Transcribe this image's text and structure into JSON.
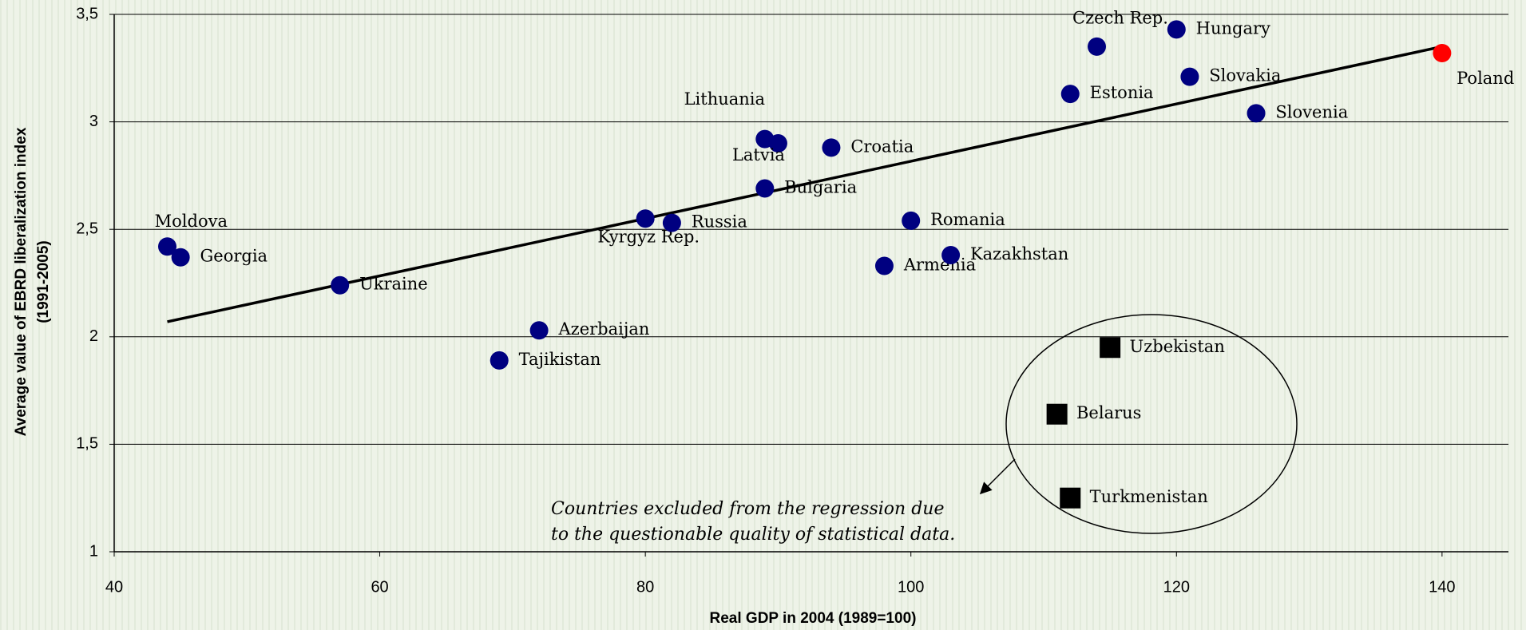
{
  "chart_data": {
    "type": "scatter",
    "x_label": "Real GDP in 2004 (1989=100)",
    "y_label": [
      "Average value of EBRD liberalization index",
      "(1991-2005)"
    ],
    "xlim": [
      40,
      145
    ],
    "ylim": [
      1,
      3.5
    ],
    "xticks": [
      40,
      60,
      80,
      100,
      120,
      140
    ],
    "yticks": [
      1,
      {
        "value": 1.5,
        "label": "1,5"
      },
      2,
      {
        "value": 2.5,
        "label": "2,5"
      },
      3,
      {
        "value": 3.5,
        "label": "3,5"
      }
    ],
    "grid": true,
    "series": [
      {
        "marker": "circle",
        "color": "#000080",
        "labels": [
          "Moldova",
          "Georgia",
          "Ukraine",
          "Tajikistan",
          "Azerbaijan",
          "Kyrgyz Rep.",
          "Russia",
          "Bulgaria",
          "Lithuania",
          "Latvia",
          "Croatia",
          "Armenia",
          "Romania",
          "Kazakhstan",
          "Estonia",
          "Czech Rep.",
          "Hungary",
          "Slovakia",
          "Slovenia"
        ],
        "x": [
          44,
          45,
          57,
          69,
          72,
          80,
          82,
          89,
          89,
          90,
          94,
          98,
          100,
          103,
          112,
          114,
          120,
          121,
          126
        ],
        "values": [
          2.42,
          2.37,
          2.24,
          1.89,
          2.03,
          2.55,
          2.53,
          2.69,
          2.92,
          2.9,
          2.88,
          2.33,
          2.54,
          2.38,
          3.13,
          3.35,
          3.43,
          3.21,
          3.04
        ]
      },
      {
        "marker": "circle",
        "color": "#ff0000",
        "labels": [
          "Poland"
        ],
        "x": [
          140
        ],
        "values": [
          3.32
        ]
      },
      {
        "marker": "square",
        "color": "#000000",
        "labels": [
          "Uzbekistan",
          "Belarus",
          "Turkmenistan"
        ],
        "x": [
          115,
          111,
          112
        ],
        "values": [
          1.95,
          1.64,
          1.25
        ]
      }
    ],
    "trendline": {
      "color": "#000000",
      "x": [
        44,
        140
      ],
      "values": [
        2.07,
        3.35
      ]
    },
    "annotation": [
      "Countries excluded from the regression due",
      "to the questionable quality of statistical data."
    ]
  }
}
